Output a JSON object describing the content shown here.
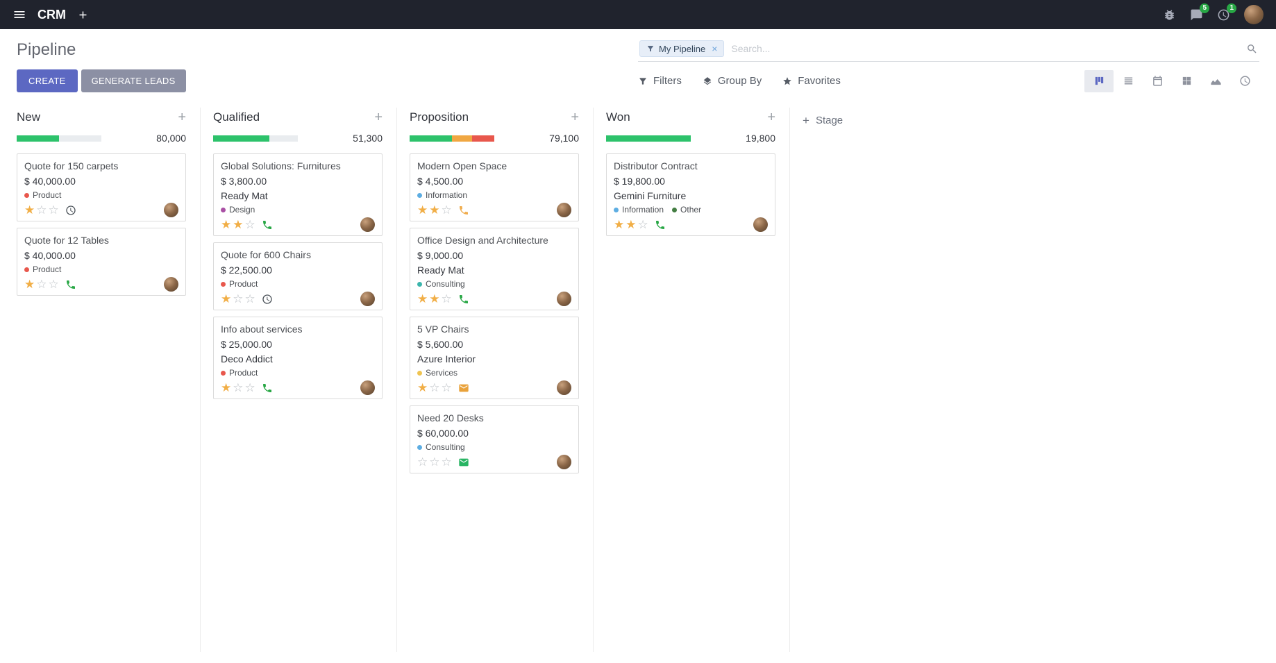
{
  "topbar": {
    "app_name": "CRM",
    "badges": {
      "messages": "5",
      "activities": "1"
    }
  },
  "control_panel": {
    "title": "Pipeline",
    "create_label": "CREATE",
    "generate_leads_label": "GENERATE LEADS",
    "search": {
      "facet": "My Pipeline",
      "placeholder": "Search...",
      "remove": "×"
    },
    "filters_label": "Filters",
    "group_by_label": "Group By",
    "favorites_label": "Favorites"
  },
  "view_switcher": [
    "kanban",
    "list",
    "calendar",
    "pivot",
    "graph",
    "activity"
  ],
  "icons": {
    "star_filled_glyph": "★",
    "star_empty_glyph": "☆",
    "topbar": [
      "menu-icon",
      "plus-icon",
      "bug-icon",
      "messages-icon",
      "activities-icon"
    ],
    "filter_bar": [
      "filter-icon",
      "layers-icon",
      "star-icon"
    ],
    "view_switcher": [
      "kanban-icon",
      "list-icon",
      "calendar-icon",
      "pivot-icon",
      "graph-icon",
      "activity-icon"
    ],
    "card_activities": [
      "clock-icon",
      "phone-icon",
      "envelope-icon"
    ]
  },
  "kanban": {
    "add_stage_label": "Stage",
    "columns": [
      {
        "title": "New",
        "total": "80,000",
        "progress": [
          {
            "color": "#2DC26B",
            "pct": 50
          }
        ],
        "cards": [
          {
            "title": "Quote for 150 carpets",
            "amount": "$ 40,000.00",
            "tags": [
              {
                "label": "Product",
                "color": "#E8574C"
              }
            ],
            "stars": 1,
            "activity": {
              "type": "clock",
              "color": "#495057"
            }
          },
          {
            "title": "Quote for 12 Tables",
            "amount": "$ 40,000.00",
            "tags": [
              {
                "label": "Product",
                "color": "#E8574C"
              }
            ],
            "stars": 1,
            "activity": {
              "type": "phone",
              "color": "#28A745"
            }
          }
        ]
      },
      {
        "title": "Qualified",
        "total": "51,300",
        "progress": [
          {
            "color": "#2DC26B",
            "pct": 66
          }
        ],
        "cards": [
          {
            "title": "Global Solutions: Furnitures",
            "amount": "$ 3,800.00",
            "partner": "Ready Mat",
            "tags": [
              {
                "label": "Design",
                "color": "#A94FA4"
              }
            ],
            "stars": 2,
            "activity": {
              "type": "phone",
              "color": "#28A745"
            }
          },
          {
            "title": "Quote for 600 Chairs",
            "amount": "$ 22,500.00",
            "tags": [
              {
                "label": "Product",
                "color": "#E8574C"
              }
            ],
            "stars": 1,
            "activity": {
              "type": "clock",
              "color": "#495057"
            }
          },
          {
            "title": "Info about services",
            "amount": "$ 25,000.00",
            "partner": "Deco Addict",
            "tags": [
              {
                "label": "Product",
                "color": "#E8574C"
              }
            ],
            "stars": 1,
            "activity": {
              "type": "phone",
              "color": "#28A745"
            }
          }
        ]
      },
      {
        "title": "Proposition",
        "total": "79,100",
        "progress": [
          {
            "color": "#2DC26B",
            "pct": 50
          },
          {
            "color": "#F0A742",
            "pct": 24
          },
          {
            "color": "#E8574C",
            "pct": 26
          }
        ],
        "cards": [
          {
            "title": "Modern Open Space",
            "amount": "$ 4,500.00",
            "tags": [
              {
                "label": "Information",
                "color": "#5DADE2"
              }
            ],
            "stars": 2,
            "activity": {
              "type": "phone",
              "color": "#F0AD4E"
            }
          },
          {
            "title": "Office Design and Architecture",
            "amount": "$ 9,000.00",
            "partner": "Ready Mat",
            "tags": [
              {
                "label": "Consulting",
                "color": "#3BB5AC"
              }
            ],
            "stars": 2,
            "activity": {
              "type": "phone",
              "color": "#28A745"
            }
          },
          {
            "title": "5 VP Chairs",
            "amount": "$ 5,600.00",
            "partner": "Azure Interior",
            "tags": [
              {
                "label": "Services",
                "color": "#EFC451"
              }
            ],
            "stars": 1,
            "activity": {
              "type": "envelope",
              "color": "#E9A23B"
            }
          },
          {
            "title": "Need 20 Desks",
            "amount": "$ 60,000.00",
            "tags": [
              {
                "label": "Consulting",
                "color": "#5DADE2"
              }
            ],
            "stars": 0,
            "activity": {
              "type": "envelope",
              "color": "#28B463"
            }
          }
        ]
      },
      {
        "title": "Won",
        "total": "19,800",
        "progress": [
          {
            "color": "#2DC26B",
            "pct": 100
          }
        ],
        "cards": [
          {
            "title": "Distributor Contract",
            "amount": "$ 19,800.00",
            "partner": "Gemini Furniture",
            "tags": [
              {
                "label": "Information",
                "color": "#5DADE2"
              },
              {
                "label": "Other",
                "color": "#437D42"
              }
            ],
            "stars": 2,
            "activity": {
              "type": "phone",
              "color": "#28A745"
            }
          }
        ]
      }
    ]
  }
}
